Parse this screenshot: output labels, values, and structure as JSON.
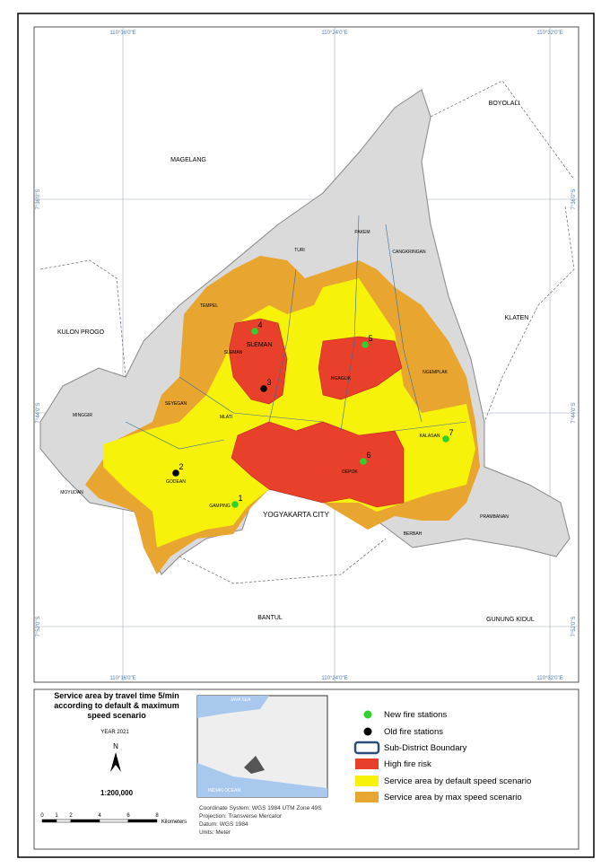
{
  "map": {
    "grid_labels_top": [
      "110°16'0\"E",
      "110°24'0\"E",
      "110°32'0\"E"
    ],
    "grid_labels_bottom": [
      "110°16'0\"E",
      "110°24'0\"E",
      "110°32'0\"E"
    ],
    "grid_labels_left": [
      "7°36'0\"S",
      "7°44'0\"S",
      "7°52'0\"S"
    ],
    "grid_labels_right": [
      "7°36'0\"S",
      "7°44'0\"S",
      "7°52'0\"S"
    ],
    "regions": [
      "MAGELANG",
      "BOYOLALI",
      "KULON PROGO",
      "KLATEN",
      "BANTUL",
      "GUNUNG KIDUL",
      "YOGYAKARTA CITY"
    ],
    "subdistricts": [
      "TURI",
      "PAKEM",
      "CANGKRINGAN",
      "TEMPEL",
      "SLEMAN",
      "NGAGLIK",
      "NGEMPLAK",
      "SEYEGAN",
      "MLATI",
      "MINGGIR",
      "GODEAN",
      "MOYUDAN",
      "GAMPING",
      "DEPOK",
      "KALASAN",
      "PRAMBANAN",
      "BERBAH"
    ],
    "stations": [
      {
        "label": "1",
        "kind": "new"
      },
      {
        "label": "2",
        "kind": "old"
      },
      {
        "label": "3",
        "kind": "old"
      },
      {
        "label": "4",
        "kind": "new"
      },
      {
        "label": "5",
        "kind": "new"
      },
      {
        "label": "6",
        "kind": "new"
      },
      {
        "label": "7",
        "kind": "new"
      }
    ],
    "sleman_label": "SLEMAN"
  },
  "legend": {
    "title_lines": [
      "Service area by travel time 5/min",
      "according to default & maximum",
      "speed scenario"
    ],
    "year": "YEAR 2021",
    "north": "N",
    "scale": "1:200,000",
    "scale_ticks": [
      "0",
      "1",
      "2",
      "4",
      "6",
      "8"
    ],
    "scale_unit": "Kilometers",
    "info": [
      "Coordinate System: WGS 1984 UTM Zone 49S",
      "Projection: Transverse Mercator",
      "Datum: WGS 1984",
      "Units: Meter"
    ],
    "items": [
      "New fire stations",
      "Old fire stations",
      "Sub-District Boundary",
      "High fire risk",
      "Service area by default speed scenario",
      "Service area by max speed scenario"
    ]
  },
  "inset": {
    "labels": [
      "JAVA SEA",
      "INDIAN OCEAN"
    ]
  }
}
